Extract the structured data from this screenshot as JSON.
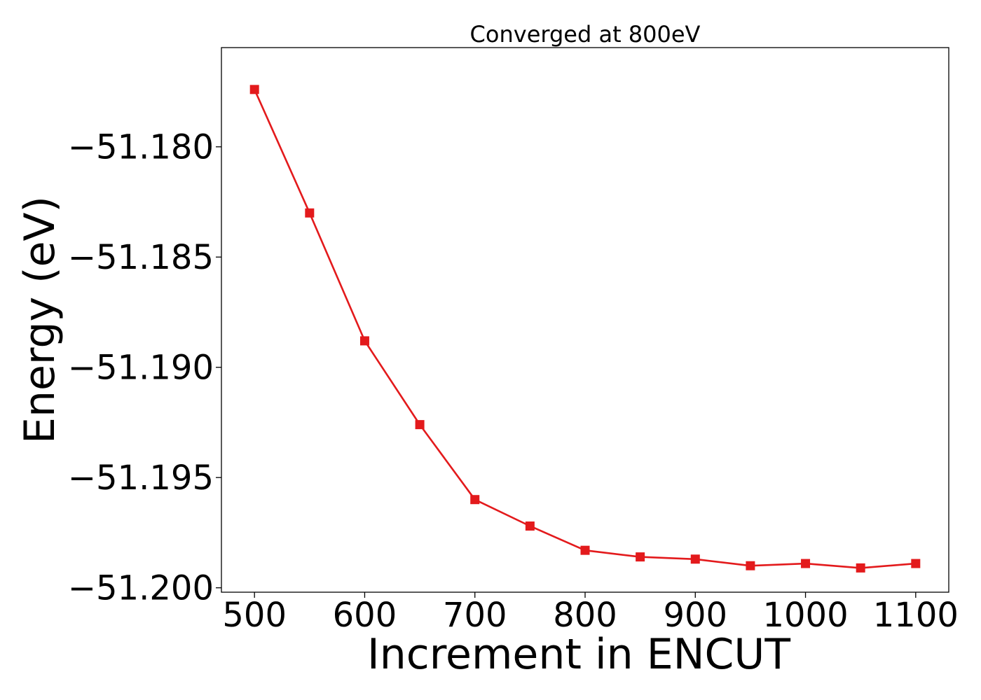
{
  "chart_data": {
    "type": "line",
    "title": "Converged at 800eV",
    "xlabel": "Increment in ENCUT",
    "ylabel": "Energy (eV)",
    "xlim": [
      470,
      1130
    ],
    "ylim": [
      -51.2002,
      -51.1755
    ],
    "xticks": [
      500,
      600,
      700,
      800,
      900,
      1000,
      1100
    ],
    "xtick_labels": [
      "500",
      "600",
      "700",
      "800",
      "900",
      "1000",
      "1100"
    ],
    "yticks": [
      -51.18,
      -51.185,
      -51.19,
      -51.195,
      -51.2
    ],
    "ytick_labels": [
      "−51.180",
      "−51.185",
      "−51.190",
      "−51.195",
      "−51.200"
    ],
    "grid": false,
    "series": [
      {
        "color": "#e31a1c",
        "marker": "square",
        "x": [
          500,
          550,
          600,
          650,
          700,
          750,
          800,
          850,
          900,
          950,
          1000,
          1050,
          1100
        ],
        "y": [
          -51.1774,
          -51.183,
          -51.1888,
          -51.1926,
          -51.196,
          -51.1972,
          -51.1983,
          -51.1986,
          -51.1987,
          -51.199,
          -51.1989,
          -51.1991,
          -51.1989
        ]
      }
    ]
  }
}
